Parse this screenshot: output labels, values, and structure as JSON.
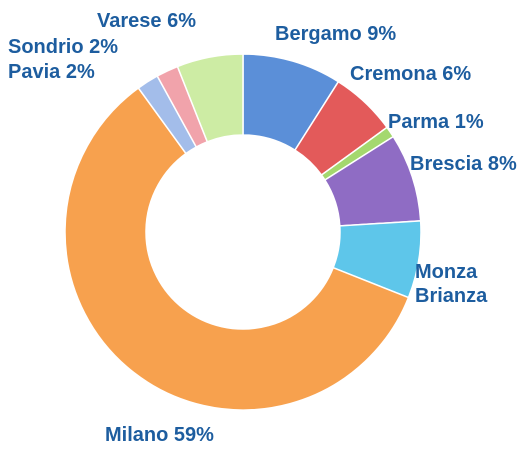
{
  "chart_data": {
    "type": "donut",
    "categories": [
      "Bergamo",
      "Cremona",
      "Parma",
      "Brescia",
      "Monza Brianza",
      "Milano",
      "Pavia",
      "Sondrio",
      "Varese"
    ],
    "values": [
      9,
      6,
      1,
      8,
      7,
      59,
      2,
      2,
      6
    ],
    "value_labels": [
      "9%",
      "6%",
      "1%",
      "8%",
      null,
      "59%",
      "2%",
      "2%",
      "6%"
    ],
    "colors": [
      "#5b8fd8",
      "#e35a5a",
      "#a4d86e",
      "#8f6cc4",
      "#5ec6ea",
      "#f7a14e",
      "#a3bdea",
      "#f1a3ab",
      "#cdeca4"
    ]
  }
}
